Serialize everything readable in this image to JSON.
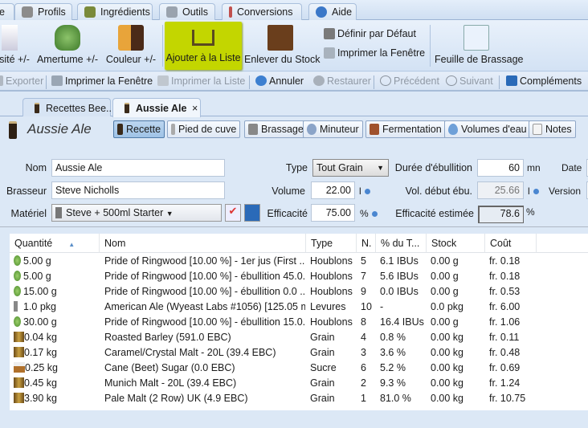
{
  "menu": {
    "tabs": [
      "e",
      "Profils",
      "Ingrédients",
      "Outils",
      "Conversions",
      "Aide"
    ]
  },
  "ribbon": {
    "densite": "sité +/-",
    "amertume": "Amertume +/-",
    "couleur": "Couleur +/-",
    "ajouter": "Ajouter à la Liste",
    "enlever": "Enlever du Stock",
    "definir": "Définir par Défaut",
    "imprimer": "Imprimer la Fenêtre",
    "feuille": "Feuille de Brassage",
    "highlight_color": "#c3d600"
  },
  "toolbar": {
    "exporter": "Exporter",
    "imprimer_fenetre": "Imprimer la Fenêtre",
    "imprimer_liste": "Imprimer la Liste",
    "annuler": "Annuler",
    "restaurer": "Restaurer",
    "precedent": "Précédent",
    "suivant": "Suivant",
    "complements": "Compléments"
  },
  "doc_tabs": [
    {
      "label": "Recettes Bee..."
    },
    {
      "label": "Aussie Ale",
      "close": "×"
    }
  ],
  "recipe": {
    "title": "Aussie Ale",
    "views": [
      "Recette",
      "Pied de cuve",
      "Brassage",
      "Minuteur",
      "Fermentation",
      "Volumes d'eau",
      "Notes"
    ]
  },
  "form": {
    "nom_label": "Nom",
    "nom": "Aussie Ale",
    "brasseur_label": "Brasseur",
    "brasseur": "Steve Nicholls",
    "materiel_label": "Matériel",
    "materiel": "Steve + 500ml Starter",
    "type_label": "Type",
    "type": "Tout Grain",
    "volume_label": "Volume",
    "volume": "22.00",
    "volume_unit": "l",
    "efficacite_label": "Efficacité",
    "efficacite": "75.00",
    "efficacite_unit": "%",
    "duree_label": "Durée d'ébullition",
    "duree": "60",
    "duree_unit": "mn",
    "vol_debut_label": "Vol. début ébu.",
    "vol_debut": "25.66",
    "vol_debut_unit": "l",
    "eff_est_label": "Efficacité estimée",
    "eff_est": "78.6",
    "eff_est_unit": "%",
    "date_label": "Date",
    "version_label": "Version"
  },
  "table": {
    "columns": [
      "Quantité",
      "Nom",
      "Type",
      "N.",
      "% du T...",
      "Stock",
      "Coût"
    ],
    "rows": [
      {
        "icon": "hop",
        "qty": "5.00 g",
        "name": "Pride of Ringwood [10.00 %] - 1er jus (First ...",
        "type": "Houblons",
        "n": "5",
        "pct": "6.1 IBUs",
        "stock": "0.00 g",
        "cost": "fr. 0.18"
      },
      {
        "icon": "hop",
        "qty": "5.00 g",
        "name": "Pride of Ringwood [10.00 %] - ébullition 45.0...",
        "type": "Houblons",
        "n": "7",
        "pct": "5.6 IBUs",
        "stock": "0.00 g",
        "cost": "fr. 0.18"
      },
      {
        "icon": "hop",
        "qty": "15.00 g",
        "name": "Pride of Ringwood [10.00 %] - ébullition 0.0 ...",
        "type": "Houblons",
        "n": "9",
        "pct": "0.0 IBUs",
        "stock": "0.00 g",
        "cost": "fr. 0.53"
      },
      {
        "icon": "yeast",
        "qty": "1.0 pkg",
        "name": "American Ale (Wyeast Labs #1056) [125.05 ml]",
        "type": "Levures",
        "n": "10",
        "pct": "-",
        "stock": "0.0 pkg",
        "cost": "fr. 6.00"
      },
      {
        "icon": "hop",
        "qty": "30.00 g",
        "name": "Pride of Ringwood [10.00 %] - ébullition 15.0...",
        "type": "Houblons",
        "n": "8",
        "pct": "16.4 IBUs",
        "stock": "0.00 g",
        "cost": "fr. 1.06"
      },
      {
        "icon": "grain",
        "qty": "0.04 kg",
        "name": "Roasted Barley (591.0 EBC)",
        "type": "Grain",
        "n": "4",
        "pct": "0.8 %",
        "stock": "0.00 kg",
        "cost": "fr. 0.11"
      },
      {
        "icon": "grain",
        "qty": "0.17 kg",
        "name": "Caramel/Crystal Malt - 20L (39.4 EBC)",
        "type": "Grain",
        "n": "3",
        "pct": "3.6 %",
        "stock": "0.00 kg",
        "cost": "fr. 0.48"
      },
      {
        "icon": "sugar",
        "qty": "0.25 kg",
        "name": "Cane (Beet) Sugar (0.0 EBC)",
        "type": "Sucre",
        "n": "6",
        "pct": "5.2 %",
        "stock": "0.00 kg",
        "cost": "fr. 0.69"
      },
      {
        "icon": "grain",
        "qty": "0.45 kg",
        "name": "Munich Malt - 20L (39.4 EBC)",
        "type": "Grain",
        "n": "2",
        "pct": "9.3 %",
        "stock": "0.00 kg",
        "cost": "fr. 1.24"
      },
      {
        "icon": "grain",
        "qty": "3.90 kg",
        "name": "Pale Malt (2 Row) UK (4.9 EBC)",
        "type": "Grain",
        "n": "1",
        "pct": "81.0 %",
        "stock": "0.00 kg",
        "cost": "fr. 10.75"
      }
    ]
  }
}
